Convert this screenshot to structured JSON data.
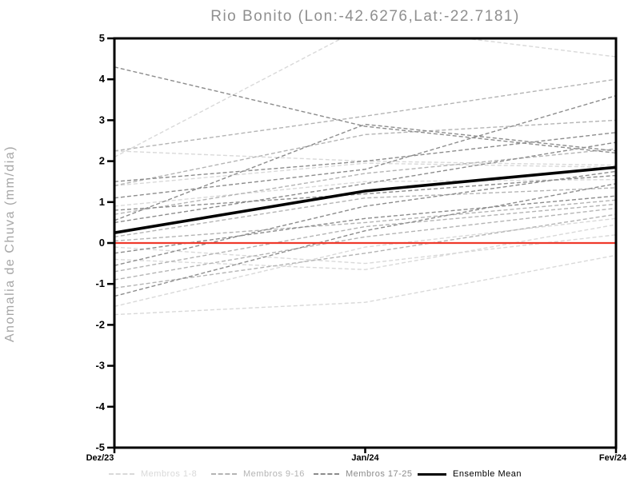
{
  "chart_data": {
    "type": "line",
    "title": "Rio Bonito (Lon:-42.6276,Lat:-22.7181)",
    "ylabel": "Anomalia de Chuva (mm/dia)",
    "xlabel": "",
    "x_categories": [
      "Dez/23",
      "Jan/24",
      "Fev/24"
    ],
    "ylim": [
      -5,
      5
    ],
    "yticks": [
      5,
      4,
      3,
      2,
      1,
      0,
      -1,
      -2,
      -3,
      -4,
      -5
    ],
    "grid": "off",
    "legend_position": "bottom",
    "frame_color": "#000000",
    "tick_label_color": "#000000",
    "zero_line": {
      "value": 0,
      "color": "#ef392c"
    },
    "groups": [
      {
        "name": "Membros 1-8",
        "color": "#d9d9d9",
        "line_style": "dashed",
        "series": [
          [
            2.1,
            5.3,
            4.55
          ],
          [
            2.25,
            2.0,
            1.9
          ],
          [
            1.4,
            1.95,
            1.85
          ],
          [
            -0.1,
            -0.5,
            0.2
          ],
          [
            -0.4,
            -0.65,
            0.45
          ],
          [
            -1.55,
            -0.1,
            0.6
          ],
          [
            -1.75,
            -1.45,
            -0.3
          ],
          [
            0.9,
            1.5,
            1.55
          ]
        ]
      },
      {
        "name": "Membros 9-16",
        "color": "#b4b4b4",
        "line_style": "dashed",
        "series": [
          [
            2.25,
            3.1,
            4.0
          ],
          [
            1.4,
            2.65,
            3.0
          ],
          [
            0.7,
            1.7,
            2.3
          ],
          [
            -0.9,
            0.15,
            0.85
          ],
          [
            0.15,
            1.1,
            1.35
          ],
          [
            0.05,
            0.5,
            1.05
          ],
          [
            -0.7,
            0.4,
            0.95
          ],
          [
            -1.1,
            -0.25,
            0.7
          ]
        ]
      },
      {
        "name": "Membros 17-25",
        "color": "#8c8c8c",
        "line_style": "dashed",
        "series": [
          [
            4.3,
            2.85,
            2.2
          ],
          [
            0.55,
            2.9,
            2.25
          ],
          [
            1.1,
            1.8,
            3.6
          ],
          [
            0.5,
            1.45,
            2.46
          ],
          [
            1.5,
            2.0,
            2.7
          ],
          [
            -0.55,
            0.9,
            1.75
          ],
          [
            -1.3,
            0.3,
            1.45
          ],
          [
            0.8,
            1.2,
            1.65
          ],
          [
            -0.25,
            0.6,
            1.15
          ]
        ]
      }
    ],
    "mean": {
      "name": "Ensemble Mean",
      "color": "#000000",
      "line_style": "solid",
      "values": [
        0.25,
        1.27,
        1.85
      ]
    }
  }
}
